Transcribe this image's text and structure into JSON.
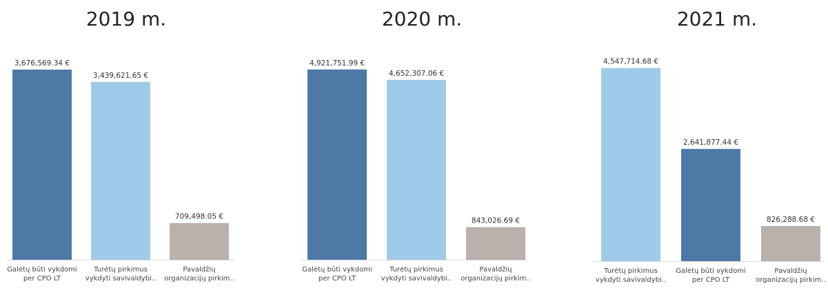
{
  "chart_data": [
    {
      "type": "bar",
      "title": "2019 m.",
      "categories": [
        "Galėtų būti vykdomi per CPO LT",
        "Turėtų pirkimus vykdyti savivaldybi..",
        "Pavaldžių organizacijų pirkim.."
      ],
      "category_lines": [
        [
          "Galėtų būti vykdomi",
          "per CPO LT"
        ],
        [
          "Turėtų pirkimus",
          "vykdyti savivaldybi.."
        ],
        [
          "Pavaldžių",
          "organizacijų pirkim.."
        ]
      ],
      "values": [
        3676569.34,
        3439621.65,
        709498.05
      ],
      "data_labels": [
        "3,676,569.34 €",
        "3,439,621.65 €",
        "709,498.05 €"
      ],
      "colors": [
        "#4e79a7",
        "#a0cbe8",
        "#bab0ac"
      ],
      "ylim": [
        0,
        3850000
      ],
      "grid": false
    },
    {
      "type": "bar",
      "title": "2020 m.",
      "categories": [
        "Galėtų būti vykdomi per CPO LT",
        "Turėtų pirkimus vykdyti savivaldybi..",
        "Pavaldžių organizacijų pirkim.."
      ],
      "category_lines": [
        [
          "Galėtų būti vykdomi",
          "per CPO LT"
        ],
        [
          "Turėtų pirkimus",
          "vykdyti savivaldybi.."
        ],
        [
          "Pavaldžių",
          "organizacijų pirkim.."
        ]
      ],
      "values": [
        4921751.99,
        4652307.06,
        843026.69
      ],
      "data_labels": [
        "4,921,751.99 €",
        "4,652,307.06 €",
        "843,026.69 €"
      ],
      "colors": [
        "#4e79a7",
        "#a0cbe8",
        "#bab0ac"
      ],
      "ylim": [
        0,
        5150000
      ],
      "grid": false
    },
    {
      "type": "bar",
      "title": "2021 m.",
      "categories": [
        "Turėtų pirkimus vykdyti savivaldybi..",
        "Galėtų būti vykdomi per CPO LT",
        "Pavaldžių organizacijų pirkim.."
      ],
      "category_lines": [
        [
          "Turėtų pirkimus",
          "vykdyti savivaldybi.."
        ],
        [
          "Galėtų būti vykdomi",
          "per CPO LT"
        ],
        [
          "Pavaldžių",
          "organizacijų pirkim.."
        ]
      ],
      "values": [
        4547714.68,
        2641877.44,
        826288.68
      ],
      "data_labels": [
        "4,547,714.68 €",
        "2,641,877.44 €",
        "826,288.68 €"
      ],
      "colors": [
        "#a0cbe8",
        "#4e79a7",
        "#bab0ac"
      ],
      "ylim": [
        0,
        4770000
      ],
      "grid": false
    }
  ]
}
